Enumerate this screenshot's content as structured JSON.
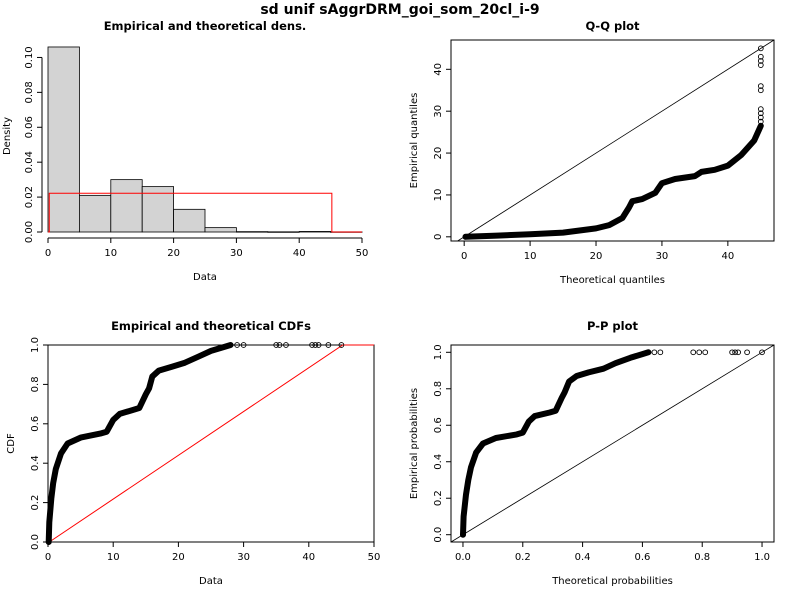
{
  "page_title": "sd unif sAggrDRM_goi_som_20cl_i-9",
  "chart_data": [
    {
      "type": "bar",
      "title": "Empirical and theoretical dens.",
      "xlabel": "Data",
      "ylabel": "Density",
      "xlim": [
        0,
        50
      ],
      "ylim": [
        0,
        0.11
      ],
      "x_ticks": [
        "0",
        "10",
        "20",
        "30",
        "40",
        "50"
      ],
      "y_ticks": [
        "0.00",
        "0.02",
        "0.04",
        "0.06",
        "0.08",
        "0.10"
      ],
      "histogram": {
        "bin_edges": [
          0,
          5,
          10,
          15,
          20,
          25,
          30,
          35,
          40,
          45,
          50
        ],
        "density": [
          0.106,
          0.021,
          0.03,
          0.026,
          0.013,
          0.0025,
          0.0002,
          0.0001,
          0.0003,
          0.0001
        ],
        "fill": "#d3d3d3"
      },
      "theoretical_density": {
        "distribution": "uniform",
        "min": 0.2,
        "max": 45.2,
        "density": 0.0222,
        "color": "#ff0000"
      },
      "grid": false
    },
    {
      "type": "scatter",
      "title": "Q-Q plot",
      "xlabel": "Theoretical quantiles",
      "ylabel": "Empirical quantiles",
      "xlim": [
        -2,
        47
      ],
      "ylim": [
        -1,
        47
      ],
      "x_ticks": [
        "0",
        "10",
        "20",
        "30",
        "40"
      ],
      "y_ticks": [
        "0",
        "10",
        "20",
        "30",
        "40"
      ],
      "reference_line": "y=x",
      "curve": [
        [
          0.2,
          0
        ],
        [
          5,
          0.3
        ],
        [
          10,
          0.6
        ],
        [
          15,
          1
        ],
        [
          20,
          2
        ],
        [
          22,
          2.8
        ],
        [
          24,
          4.5
        ],
        [
          25,
          7
        ],
        [
          25.5,
          8.5
        ],
        [
          27,
          9
        ],
        [
          29,
          10.5
        ],
        [
          30,
          12.8
        ],
        [
          32,
          13.8
        ],
        [
          35,
          14.5
        ],
        [
          36,
          15.5
        ],
        [
          38,
          16
        ],
        [
          40,
          17
        ],
        [
          42,
          19.5
        ],
        [
          44,
          23
        ],
        [
          45,
          26.5
        ]
      ],
      "outliers": [
        [
          45,
          27.5
        ],
        [
          45,
          28.5
        ],
        [
          45,
          29.5
        ],
        [
          45,
          30.5
        ],
        [
          45,
          35
        ],
        [
          45,
          36
        ],
        [
          45,
          41
        ],
        [
          45,
          42
        ],
        [
          45,
          43
        ],
        [
          45,
          45
        ]
      ],
      "grid": false
    },
    {
      "type": "line",
      "title": "Empirical and theoretical CDFs",
      "xlabel": "Data",
      "ylabel": "CDF",
      "xlim": [
        0,
        50
      ],
      "ylim": [
        0,
        1
      ],
      "x_ticks": [
        "0",
        "10",
        "20",
        "30",
        "40",
        "50"
      ],
      "y_ticks": [
        "0.0",
        "0.2",
        "0.4",
        "0.6",
        "0.8",
        "1.0"
      ],
      "empirical": [
        [
          0.1,
          0
        ],
        [
          0.2,
          0.1
        ],
        [
          0.5,
          0.22
        ],
        [
          0.8,
          0.3
        ],
        [
          1.2,
          0.37
        ],
        [
          2,
          0.45
        ],
        [
          3,
          0.5
        ],
        [
          5,
          0.53
        ],
        [
          8,
          0.55
        ],
        [
          9,
          0.56
        ],
        [
          10,
          0.62
        ],
        [
          11,
          0.65
        ],
        [
          13,
          0.67
        ],
        [
          14,
          0.68
        ],
        [
          15,
          0.75
        ],
        [
          15.5,
          0.78
        ],
        [
          16,
          0.84
        ],
        [
          17,
          0.87
        ],
        [
          19,
          0.89
        ],
        [
          21,
          0.91
        ],
        [
          23,
          0.94
        ],
        [
          25,
          0.97
        ],
        [
          27,
          0.99
        ],
        [
          28,
          1.0
        ]
      ],
      "empirical_outliers": [
        [
          29,
          1
        ],
        [
          30,
          1
        ],
        [
          35,
          1
        ],
        [
          35.5,
          1
        ],
        [
          36.5,
          1
        ],
        [
          40.5,
          1
        ],
        [
          41,
          1
        ],
        [
          41.5,
          1
        ],
        [
          43,
          1
        ],
        [
          45,
          1
        ]
      ],
      "theoretical_cdf": [
        [
          0.2,
          0
        ],
        [
          45.2,
          1
        ],
        [
          50,
          1
        ]
      ],
      "theoretical_color": "#ff0000",
      "grid": false
    },
    {
      "type": "scatter",
      "title": "P-P plot",
      "xlabel": "Theoretical probabilities",
      "ylabel": "Empirical probabilities",
      "xlim": [
        -0.04,
        1.04
      ],
      "ylim": [
        -0.04,
        1.04
      ],
      "x_ticks": [
        "0.0",
        "0.2",
        "0.4",
        "0.6",
        "0.8",
        "1.0"
      ],
      "y_ticks": [
        "0.0",
        "0.2",
        "0.4",
        "0.6",
        "0.8",
        "1.0"
      ],
      "reference_line": "y=x",
      "curve": [
        [
          0,
          0
        ],
        [
          0.002,
          0.1
        ],
        [
          0.01,
          0.22
        ],
        [
          0.018,
          0.3
        ],
        [
          0.027,
          0.37
        ],
        [
          0.044,
          0.45
        ],
        [
          0.067,
          0.5
        ],
        [
          0.11,
          0.53
        ],
        [
          0.18,
          0.55
        ],
        [
          0.2,
          0.56
        ],
        [
          0.22,
          0.62
        ],
        [
          0.24,
          0.65
        ],
        [
          0.29,
          0.67
        ],
        [
          0.31,
          0.68
        ],
        [
          0.33,
          0.75
        ],
        [
          0.34,
          0.78
        ],
        [
          0.355,
          0.84
        ],
        [
          0.38,
          0.87
        ],
        [
          0.42,
          0.89
        ],
        [
          0.47,
          0.91
        ],
        [
          0.51,
          0.94
        ],
        [
          0.56,
          0.97
        ],
        [
          0.6,
          0.99
        ],
        [
          0.62,
          1.0
        ]
      ],
      "outliers": [
        [
          0.64,
          1
        ],
        [
          0.66,
          1
        ],
        [
          0.77,
          1
        ],
        [
          0.79,
          1
        ],
        [
          0.81,
          1
        ],
        [
          0.9,
          1
        ],
        [
          0.91,
          1
        ],
        [
          0.92,
          1
        ],
        [
          0.95,
          1
        ],
        [
          1.0,
          1
        ]
      ],
      "grid": false
    }
  ]
}
